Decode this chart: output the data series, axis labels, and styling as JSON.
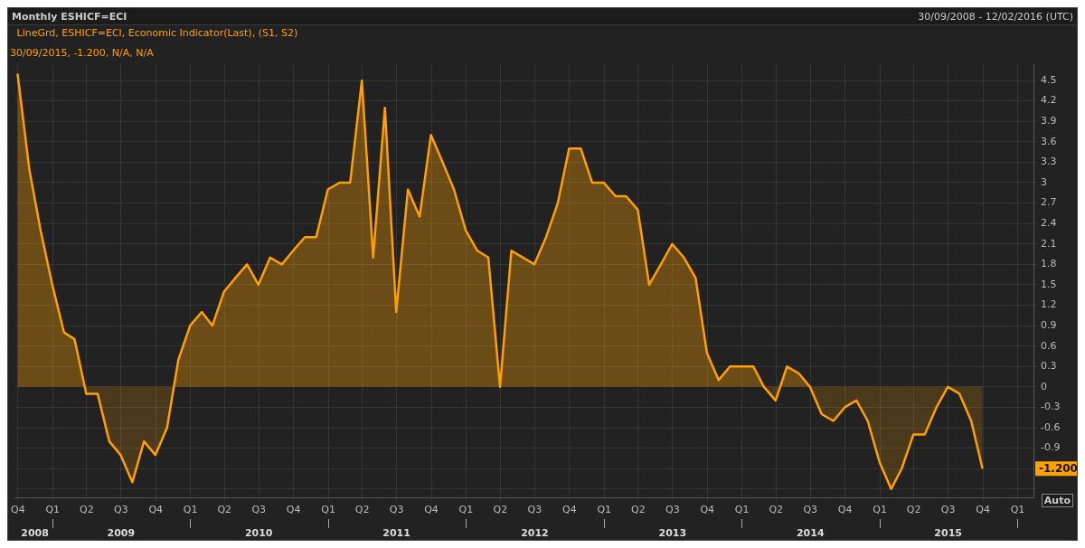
{
  "chart_data": {
    "type": "area",
    "title": "Monthly ESHICF=ECI",
    "subtitle": "30/09/2008 - 12/02/2016 (UTC)",
    "x": [
      "2008-09-30",
      "2008-10-31",
      "2008-11-30",
      "2008-12-31",
      "2009-01-31",
      "2009-02-28",
      "2009-03-31",
      "2009-04-30",
      "2009-05-31",
      "2009-06-30",
      "2009-07-31",
      "2009-08-31",
      "2009-09-30",
      "2009-10-31",
      "2009-11-30",
      "2009-12-31",
      "2010-01-31",
      "2010-02-28",
      "2010-03-31",
      "2010-04-30",
      "2010-05-31",
      "2010-06-30",
      "2010-07-31",
      "2010-08-31",
      "2010-09-30",
      "2010-10-31",
      "2010-11-30",
      "2010-12-31",
      "2011-01-31",
      "2011-02-28",
      "2011-03-31",
      "2011-04-30",
      "2011-05-31",
      "2011-06-30",
      "2011-07-31",
      "2011-08-31",
      "2011-09-30",
      "2011-10-31",
      "2011-11-30",
      "2011-12-31",
      "2012-01-31",
      "2012-02-29",
      "2012-03-31",
      "2012-04-30",
      "2012-05-31",
      "2012-06-30",
      "2012-07-31",
      "2012-08-31",
      "2012-09-30",
      "2012-10-31",
      "2012-11-30",
      "2012-12-31",
      "2013-01-31",
      "2013-02-28",
      "2013-03-31",
      "2013-04-30",
      "2013-05-31",
      "2013-06-30",
      "2013-07-31",
      "2013-08-31",
      "2013-09-30",
      "2013-10-31",
      "2013-11-30",
      "2013-12-31",
      "2014-01-31",
      "2014-02-28",
      "2014-03-31",
      "2014-04-30",
      "2014-05-31",
      "2014-06-30",
      "2014-07-31",
      "2014-08-31",
      "2014-09-30",
      "2014-10-31",
      "2014-11-30",
      "2014-12-31",
      "2015-01-31",
      "2015-02-28",
      "2015-03-31",
      "2015-04-30",
      "2015-05-31",
      "2015-06-30",
      "2015-07-31",
      "2015-08-31",
      "2015-09-30"
    ],
    "series": [
      {
        "name": "LineGrd, ESHICF=ECI, Economic Indicator(Last), (S1, S2)",
        "color": "#ffa000",
        "values": [
          4.6,
          3.2,
          2.3,
          1.5,
          0.8,
          0.7,
          -0.1,
          -0.1,
          -0.8,
          -1.0,
          -1.4,
          -0.8,
          -1.0,
          -0.6,
          0.4,
          0.9,
          1.1,
          0.9,
          1.4,
          1.6,
          1.8,
          1.5,
          1.9,
          1.8,
          2.0,
          2.2,
          2.2,
          2.9,
          3.0,
          3.0,
          4.5,
          1.9,
          4.1,
          1.1,
          2.9,
          2.5,
          3.7,
          3.3,
          2.9,
          2.3,
          2.0,
          1.9,
          0.0,
          2.0,
          1.9,
          1.8,
          2.2,
          2.7,
          3.5,
          3.5,
          3.0,
          3.0,
          2.8,
          2.8,
          2.6,
          1.5,
          1.8,
          2.1,
          1.9,
          1.6,
          0.5,
          0.1,
          0.3,
          0.3,
          0.3,
          0.0,
          -0.2,
          0.3,
          0.2,
          0.0,
          -0.4,
          -0.5,
          -0.3,
          -0.2,
          -0.5,
          -1.1,
          -1.5,
          -1.2,
          -0.7,
          -0.7,
          -0.3,
          0.0,
          -0.1,
          -0.5,
          -1.2
        ]
      }
    ],
    "xlim": [
      "2008-09-24",
      "2016-02-12"
    ],
    "xticks": [
      {
        "value": "2008-10-01",
        "label": "Q4"
      },
      {
        "value": "2009-01-01",
        "label": "Q1"
      },
      {
        "value": "2009-04-01",
        "label": "Q2"
      },
      {
        "value": "2009-07-01",
        "label": "Q3"
      },
      {
        "value": "2009-10-01",
        "label": "Q4"
      },
      {
        "value": "2010-01-01",
        "label": "Q1"
      },
      {
        "value": "2010-04-01",
        "label": "Q2"
      },
      {
        "value": "2010-07-01",
        "label": "Q3"
      },
      {
        "value": "2010-10-01",
        "label": "Q4"
      },
      {
        "value": "2011-01-01",
        "label": "Q1"
      },
      {
        "value": "2011-04-01",
        "label": "Q2"
      },
      {
        "value": "2011-07-01",
        "label": "Q3"
      },
      {
        "value": "2011-10-01",
        "label": "Q4"
      },
      {
        "value": "2012-01-01",
        "label": "Q1"
      },
      {
        "value": "2012-04-01",
        "label": "Q2"
      },
      {
        "value": "2012-07-01",
        "label": "Q3"
      },
      {
        "value": "2012-10-01",
        "label": "Q4"
      },
      {
        "value": "2013-01-01",
        "label": "Q1"
      },
      {
        "value": "2013-04-01",
        "label": "Q2"
      },
      {
        "value": "2013-07-01",
        "label": "Q3"
      },
      {
        "value": "2013-10-01",
        "label": "Q4"
      },
      {
        "value": "2014-01-01",
        "label": "Q1"
      },
      {
        "value": "2014-04-01",
        "label": "Q2"
      },
      {
        "value": "2014-07-01",
        "label": "Q3"
      },
      {
        "value": "2014-10-01",
        "label": "Q4"
      },
      {
        "value": "2015-01-01",
        "label": "Q1"
      },
      {
        "value": "2015-04-01",
        "label": "Q2"
      },
      {
        "value": "2015-07-01",
        "label": "Q3"
      },
      {
        "value": "2015-10-01",
        "label": "Q4"
      },
      {
        "value": "2016-01-01",
        "label": "Q1"
      }
    ],
    "x2lim": [
      "2008-09-24",
      "2016-02-12"
    ],
    "x2ticks": [
      {
        "value": "2008-11-15",
        "label": "2008"
      },
      {
        "value": "2009-01-01",
        "label": null
      },
      {
        "value": "2009-07-01",
        "label": "2009"
      },
      {
        "value": "2010-01-01",
        "label": null
      },
      {
        "value": "2010-07-01",
        "label": "2010"
      },
      {
        "value": "2011-01-01",
        "label": null
      },
      {
        "value": "2011-07-01",
        "label": "2011"
      },
      {
        "value": "2012-01-01",
        "label": null
      },
      {
        "value": "2012-07-01",
        "label": "2012"
      },
      {
        "value": "2013-01-01",
        "label": null
      },
      {
        "value": "2013-07-01",
        "label": "2013"
      },
      {
        "value": "2014-01-01",
        "label": null
      },
      {
        "value": "2014-07-01",
        "label": "2014"
      },
      {
        "value": "2015-01-01",
        "label": null
      },
      {
        "value": "2015-07-01",
        "label": "2015"
      },
      {
        "value": "2016-01-01",
        "label": null
      }
    ],
    "ylim": [
      -1.63,
      4.75
    ],
    "yticks": [
      {
        "value": -1.5,
        "label": null
      },
      {
        "value": -1.2,
        "label": null
      },
      -0.9,
      -0.6,
      -0.3,
      0,
      0.3,
      0.6,
      0.9,
      1.2,
      1.5,
      1.8,
      2.1,
      2.4,
      2.7,
      3,
      3.3,
      3.6,
      3.9,
      4.2,
      4.5
    ],
    "grid": true,
    "legend": "top left",
    "annotations": [
      "30/09/2015, -1.200, N/A, N/A",
      "-1.200",
      "Auto"
    ]
  }
}
